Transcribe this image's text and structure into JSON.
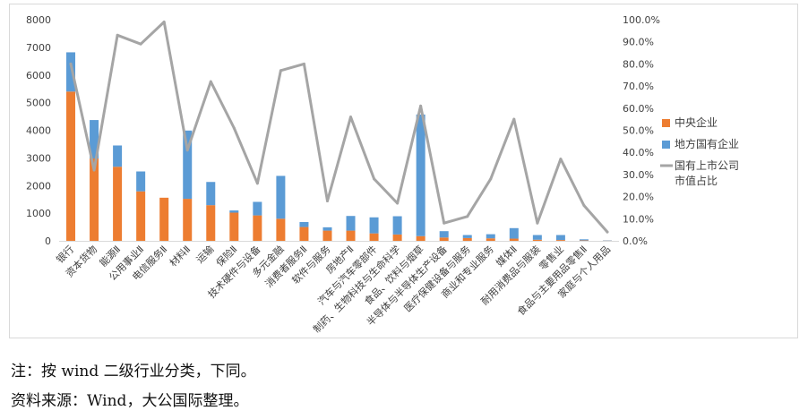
{
  "chart_data": {
    "type": "bar",
    "stacked": true,
    "categories": [
      "银行",
      "资本货物",
      "能源Ⅱ",
      "公用事业Ⅱ",
      "电信服务Ⅱ",
      "材料Ⅱ",
      "运输",
      "保险Ⅱ",
      "技术硬件与设备",
      "多元金融",
      "消费者服务Ⅱ",
      "软件与服务",
      "房地产Ⅱ",
      "汽车与汽车零部件",
      "制药、生物科技与生命科学",
      "食品、饮料与烟草",
      "半导体与半导体生产设备",
      "医疗保健设备与服务",
      "商业和专业服务",
      "媒体Ⅱ",
      "耐用消费品与服装",
      "零售业",
      "食品与主要用品零售Ⅱ",
      "家庭与个人用品"
    ],
    "series": [
      {
        "name": "中央企业",
        "axis": "left",
        "color": "#ED7D31",
        "values": [
          5400,
          2980,
          2680,
          1790,
          1560,
          1520,
          1290,
          1020,
          920,
          800,
          500,
          370,
          370,
          270,
          230,
          170,
          120,
          100,
          90,
          80,
          40,
          30,
          15,
          8
        ]
      },
      {
        "name": "地方国有企业",
        "axis": "left",
        "color": "#5B9BD5",
        "values": [
          1420,
          1390,
          770,
          720,
          0,
          2470,
          840,
          80,
          490,
          1550,
          180,
          120,
          530,
          580,
          660,
          4400,
          230,
          110,
          150,
          380,
          170,
          180,
          40,
          10
        ]
      },
      {
        "name": "国有上市公司市值占比",
        "axis": "right",
        "type": "line",
        "color": "#A5A5A5",
        "values": [
          80,
          32,
          93,
          89,
          99,
          41,
          72,
          51,
          26,
          77,
          80,
          18,
          56,
          28,
          17,
          61,
          8,
          11,
          28,
          55,
          8,
          37,
          16,
          4
        ]
      }
    ],
    "ylim_left": [
      0,
      8000
    ],
    "yticks_left": [
      "0",
      "1000",
      "2000",
      "3000",
      "4000",
      "5000",
      "6000",
      "7000",
      "8000"
    ],
    "ylim_right": [
      0,
      100
    ],
    "yticks_right": [
      "0.0%",
      "10.0%",
      "20.0%",
      "30.0%",
      "40.0%",
      "50.0%",
      "60.0%",
      "70.0%",
      "80.0%",
      "90.0%",
      "100.0%"
    ],
    "legend_position": "right",
    "grid": false
  },
  "legend": {
    "central_label": "中央企业",
    "local_label": "地方国有企业",
    "line_label_line1": "国有上市公司",
    "line_label_line2": "市值占比"
  },
  "notes": {
    "note_line": "注：按 wind 二级行业分类，下同。",
    "source_line": "资料来源：Wind，大公国际整理。"
  }
}
